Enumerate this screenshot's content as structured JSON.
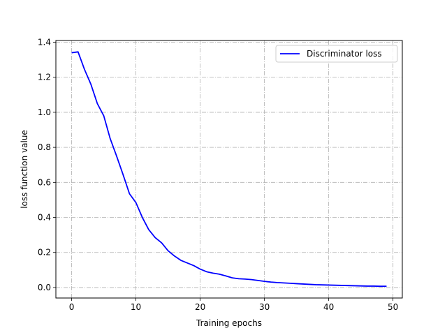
{
  "chart_data": {
    "type": "line",
    "title": "",
    "xlabel": "Training epochs",
    "ylabel": "loss function value",
    "xlim": [
      -2.45,
      51.45
    ],
    "ylim": [
      -0.06,
      1.41
    ],
    "xticks": [
      0,
      10,
      20,
      30,
      40,
      50
    ],
    "yticks": [
      0.0,
      0.2,
      0.4,
      0.6,
      0.8,
      1.0,
      1.2,
      1.4
    ],
    "xtick_labels": [
      "0",
      "10",
      "20",
      "30",
      "40",
      "50"
    ],
    "ytick_labels": [
      "0.0",
      "0.2",
      "0.4",
      "0.6",
      "0.8",
      "1.0",
      "1.2",
      "1.4"
    ],
    "grid": true,
    "legend_position": "top-right",
    "series": [
      {
        "name": "Discriminator loss",
        "color": "#0000ff",
        "x": [
          0,
          1,
          2,
          3,
          4,
          5,
          6,
          7,
          8,
          9,
          10,
          11,
          12,
          13,
          14,
          15,
          16,
          17,
          18,
          19,
          20,
          21,
          22,
          23,
          24,
          25,
          26,
          27,
          28,
          29,
          30,
          31,
          32,
          33,
          34,
          35,
          36,
          37,
          38,
          39,
          40,
          41,
          42,
          43,
          44,
          45,
          46,
          47,
          48,
          49
        ],
        "y": [
          1.34,
          1.345,
          1.245,
          1.16,
          1.05,
          0.98,
          0.85,
          0.75,
          0.645,
          0.535,
          0.485,
          0.4,
          0.33,
          0.285,
          0.255,
          0.21,
          0.18,
          0.155,
          0.14,
          0.125,
          0.105,
          0.09,
          0.082,
          0.076,
          0.066,
          0.055,
          0.05,
          0.048,
          0.045,
          0.04,
          0.035,
          0.031,
          0.028,
          0.026,
          0.024,
          0.022,
          0.02,
          0.018,
          0.016,
          0.015,
          0.014,
          0.013,
          0.012,
          0.011,
          0.01,
          0.009,
          0.008,
          0.008,
          0.007,
          0.007
        ]
      }
    ]
  }
}
